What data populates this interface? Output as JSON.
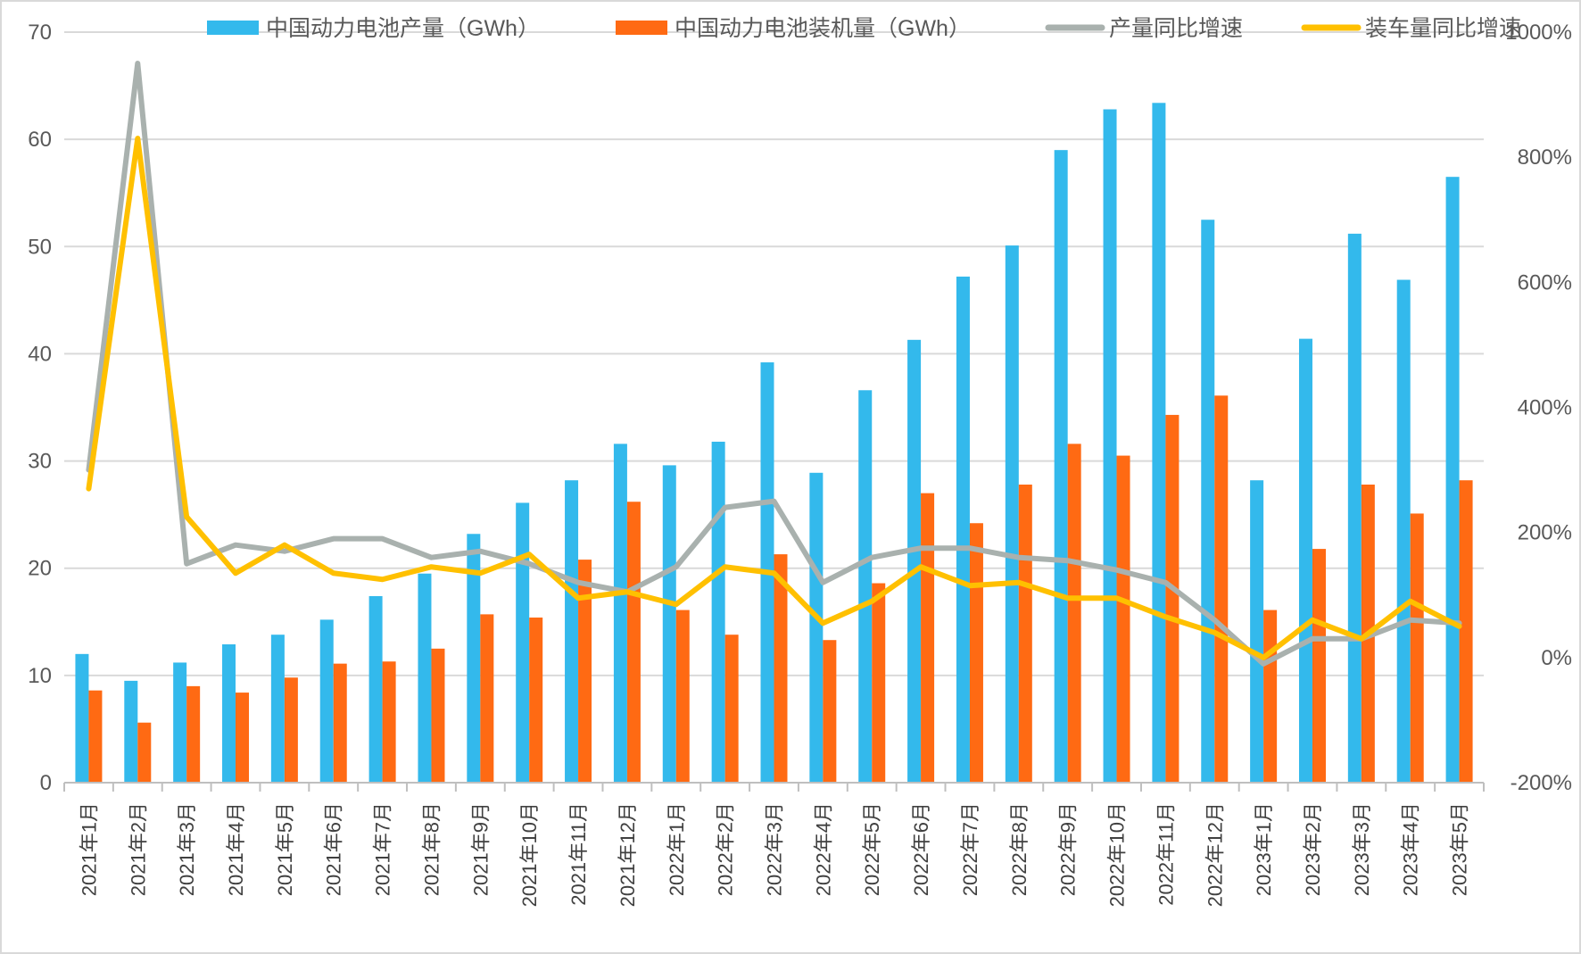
{
  "chart_data": {
    "type": "bar",
    "title": "",
    "xlabel": "",
    "ylabel": "",
    "ylim": [
      0,
      70
    ],
    "y_ticks": [
      "0",
      "10",
      "20",
      "30",
      "40",
      "50",
      "60",
      "70"
    ],
    "y2lim": [
      -200,
      1000
    ],
    "y2_ticks": [
      "-200%",
      "0%",
      "200%",
      "400%",
      "600%",
      "800%",
      "1000%"
    ],
    "grid": true,
    "legend_position": "top",
    "categories": [
      "2021年1月",
      "2021年2月",
      "2021年3月",
      "2021年4月",
      "2021年5月",
      "2021年6月",
      "2021年7月",
      "2021年8月",
      "2021年9月",
      "2021年10月",
      "2021年11月",
      "2021年12月",
      "2022年1月",
      "2022年2月",
      "2022年3月",
      "2022年4月",
      "2022年5月",
      "2022年6月",
      "2022年7月",
      "2022年8月",
      "2022年9月",
      "2022年10月",
      "2022年11月",
      "2022年12月",
      "2023年1月",
      "2023年2月",
      "2023年3月",
      "2023年4月",
      "2023年5月"
    ],
    "series": [
      {
        "name": "中国动力电池产量（GWh）",
        "kind": "bar",
        "axis": "left",
        "color": "#33b9ec",
        "values": [
          12.0,
          9.5,
          11.2,
          12.9,
          13.8,
          15.2,
          17.4,
          19.5,
          23.2,
          26.1,
          28.2,
          31.6,
          29.6,
          31.8,
          39.2,
          28.9,
          36.6,
          41.3,
          47.2,
          50.1,
          59.0,
          62.8,
          63.4,
          52.5,
          28.2,
          41.4,
          51.2,
          46.9,
          56.5
        ]
      },
      {
        "name": "中国动力电池装机量（GWh）",
        "kind": "bar",
        "axis": "left",
        "color": "#ff6a13",
        "values": [
          8.6,
          5.6,
          9.0,
          8.4,
          9.8,
          11.1,
          11.3,
          12.5,
          15.7,
          15.4,
          20.8,
          26.2,
          16.1,
          13.8,
          21.3,
          13.3,
          18.6,
          27.0,
          24.2,
          27.8,
          31.6,
          30.5,
          34.3,
          36.1,
          16.1,
          21.8,
          27.8,
          25.1,
          28.2
        ]
      },
      {
        "name": "产量同比增速",
        "kind": "line",
        "axis": "right",
        "color": "#a9b1ae",
        "values": [
          300,
          950,
          150,
          180,
          170,
          190,
          190,
          160,
          170,
          150,
          120,
          105,
          145,
          240,
          250,
          120,
          160,
          175,
          175,
          160,
          155,
          140,
          120,
          60,
          -10,
          30,
          30,
          60,
          55
        ]
      },
      {
        "name": "装车量同比增速",
        "kind": "line",
        "axis": "right",
        "color": "#ffc000",
        "values": [
          270,
          830,
          225,
          135,
          180,
          135,
          125,
          145,
          135,
          165,
          95,
          105,
          85,
          145,
          135,
          55,
          90,
          145,
          115,
          120,
          95,
          95,
          65,
          40,
          0,
          60,
          30,
          90,
          50
        ]
      }
    ]
  }
}
